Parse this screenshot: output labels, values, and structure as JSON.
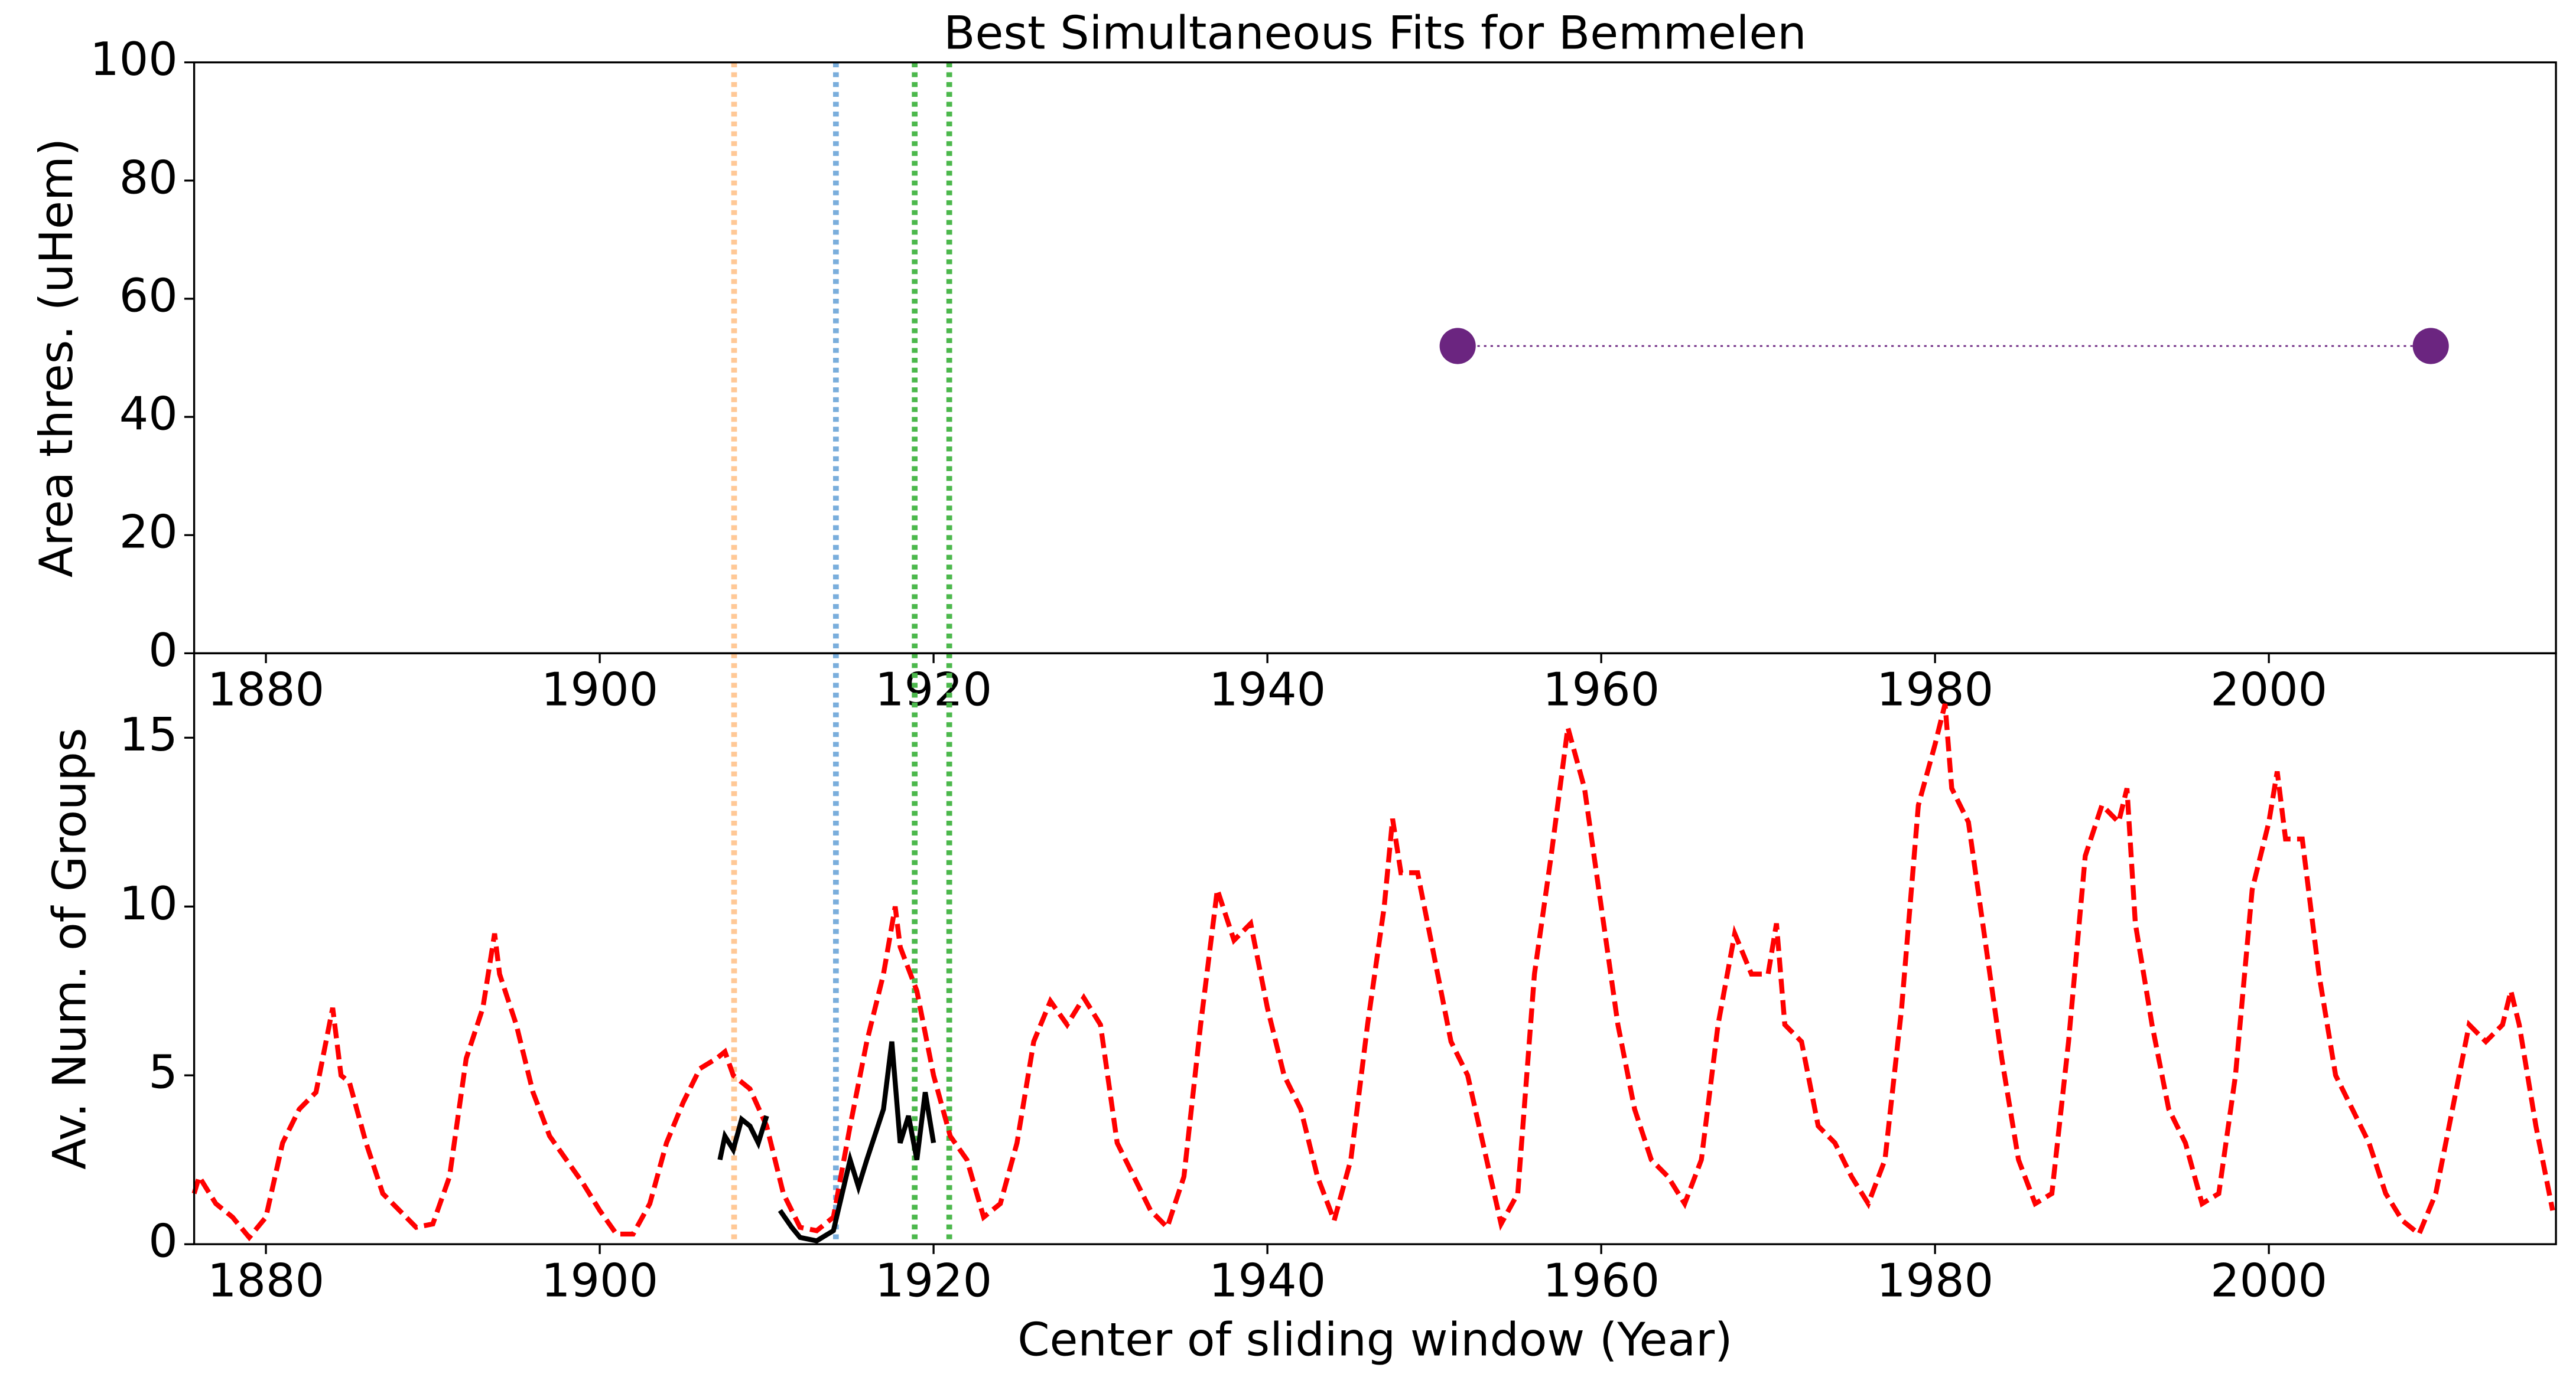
{
  "chart_data": [
    {
      "type": "line",
      "title": "Best Simultaneous Fits for Bemmelen",
      "ylabel": "Area thres. (uHem)",
      "xlim": [
        1875.7,
        2017.2
      ],
      "xticks": [
        1880,
        1900,
        1920,
        1940,
        1960,
        1980,
        2000
      ],
      "ylim": [
        0,
        100
      ],
      "yticks": [
        0,
        20,
        40,
        60,
        80,
        100
      ],
      "series": [
        {
          "color": "#6b2580",
          "style": "dotted",
          "markers": true,
          "x": [
            1951.4,
            2009.7
          ],
          "values": [
            52,
            52
          ]
        }
      ],
      "vlines": [
        {
          "x": 1908.05,
          "color": "#ffc896"
        },
        {
          "x": 1914.15,
          "color": "#7aaedc"
        },
        {
          "x": 1918.87,
          "color": "#4cb84c"
        },
        {
          "x": 1920.94,
          "color": "#4cb84c"
        }
      ]
    },
    {
      "type": "line",
      "xlabel": "Center of sliding window (Year)",
      "ylabel": "Av. Num. of Groups",
      "xlim": [
        1875.7,
        2017.2
      ],
      "xticks": [
        1880,
        1900,
        1920,
        1940,
        1960,
        1980,
        2000
      ],
      "ylim": [
        0,
        17.5
      ],
      "yticks": [
        0,
        5,
        10,
        15
      ],
      "series": [
        {
          "color": "#ff0000",
          "style": "dashed",
          "x": [
            1875.7,
            1876,
            1877,
            1878,
            1879,
            1880,
            1881,
            1882,
            1883,
            1884,
            1884.5,
            1885,
            1886,
            1887,
            1888,
            1889,
            1890,
            1891,
            1892,
            1893,
            1893.7,
            1894,
            1895,
            1896,
            1897,
            1898,
            1899,
            1900,
            1901,
            1902,
            1903,
            1904,
            1905,
            1906,
            1907,
            1907.5,
            1908,
            1909,
            1910,
            1911,
            1912,
            1913,
            1914,
            1915,
            1916,
            1917,
            1917.7,
            1918,
            1919,
            1920,
            1921,
            1922,
            1923,
            1924,
            1925,
            1926,
            1927,
            1928,
            1929,
            1930,
            1931,
            1932,
            1933,
            1934,
            1935,
            1936,
            1937,
            1938,
            1939,
            1940,
            1941,
            1942,
            1943,
            1944,
            1945,
            1946,
            1947,
            1947.5,
            1948,
            1949,
            1950,
            1951,
            1952,
            1953,
            1954,
            1955,
            1956,
            1957,
            1958,
            1959,
            1960,
            1961,
            1962,
            1963,
            1964,
            1965,
            1966,
            1967,
            1968,
            1969,
            1970,
            1970.5,
            1971,
            1972,
            1973,
            1974,
            1975,
            1976,
            1977,
            1978,
            1979,
            1980,
            1980.6,
            1981,
            1982,
            1983,
            1984,
            1985,
            1986,
            1987,
            1988,
            1989,
            1990,
            1991,
            1991.5,
            1992,
            1993,
            1994,
            1995,
            1996,
            1997,
            1998,
            1999,
            2000,
            2000.5,
            2001,
            2002,
            2003,
            2004,
            2005,
            2006,
            2007,
            2008,
            2009,
            2010,
            2011,
            2012,
            2013,
            2014,
            2014.5,
            2015,
            2016,
            2017
          ],
          "values": [
            1.5,
            2.0,
            1.2,
            0.8,
            0.2,
            0.8,
            3.0,
            4.0,
            4.5,
            7.0,
            5,
            4.8,
            3.0,
            1.5,
            1.0,
            0.5,
            0.6,
            2.0,
            5.5,
            7,
            9.2,
            8,
            6.5,
            4.5,
            3.2,
            2.5,
            1.8,
            1.0,
            0.3,
            0.3,
            1.2,
            3.0,
            4.2,
            5.2,
            5.5,
            5.7,
            5.0,
            4.6,
            3.5,
            1.5,
            0.5,
            0.4,
            0.8,
            3.5,
            6,
            8,
            10.0,
            8.8,
            7.5,
            5.0,
            3.2,
            2.5,
            0.8,
            1.2,
            3.0,
            6.0,
            7.2,
            6.5,
            7.3,
            6.5,
            3.0,
            2.0,
            1.0,
            0.5,
            2.0,
            6.5,
            10.5,
            9.0,
            9.5,
            7,
            5.0,
            4.0,
            2.0,
            0.7,
            2.5,
            6.5,
            10.0,
            12.6,
            11,
            11,
            8.5,
            6.0,
            5.0,
            2.8,
            0.6,
            1.5,
            8.0,
            11.5,
            15.3,
            13.5,
            10,
            6.5,
            4.0,
            2.5,
            2.0,
            1.2,
            2.5,
            6.5,
            9.2,
            8.0,
            8.0,
            9.5,
            6.5,
            6.0,
            3.5,
            3.0,
            2.0,
            1.2,
            2.5,
            7.0,
            13.0,
            14.8,
            16,
            13.5,
            12.5,
            9.0,
            5.5,
            2.5,
            1.2,
            1.5,
            6.0,
            11.5,
            13.0,
            12.5,
            13.5,
            9.5,
            6.5,
            4.0,
            3.0,
            1.2,
            1.5,
            5.0,
            10.5,
            12.5,
            14,
            12,
            12,
            8,
            5,
            4.0,
            3.0,
            1.5,
            0.7,
            0.3,
            1.5,
            4.0,
            6.5,
            6.0,
            6.5,
            7.5,
            6.5,
            3.5,
            1.0
          ]
        },
        {
          "color": "#000000",
          "style": "solid",
          "x": [
            1907.2,
            1907.5,
            1908,
            1908.5,
            1909,
            1909.5,
            1910,
            1910.4,
            1910.8,
            1911.5,
            1912,
            1913,
            1914,
            1915,
            1915.5,
            1916,
            1917,
            1917.5,
            1918,
            1918.5,
            1919,
            1919.5,
            1920
          ],
          "values": [
            2.5,
            3.2,
            2.8,
            3.7,
            3.5,
            3.0,
            3.8,
            null,
            1.0,
            0.5,
            0.2,
            0.1,
            0.4,
            2.5,
            1.7,
            2.5,
            4.0,
            6.0,
            3.0,
            3.8,
            2.5,
            4.5,
            3.0
          ]
        }
      ]
    }
  ]
}
